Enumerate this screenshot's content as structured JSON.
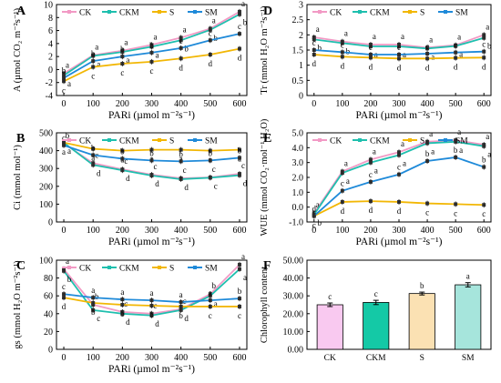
{
  "colors": {
    "CK": "#f29ac5",
    "CKM": "#1fbfae",
    "S": "#f2b705",
    "SM": "#1f8ad9",
    "axis": "#000000"
  },
  "xTickLabels": [
    "0",
    "100",
    "200",
    "300",
    "400",
    "500",
    "600"
  ],
  "chart_data": [
    {
      "id": "A",
      "type": "line",
      "panel_label": "A",
      "xlabel": "PARi (µmol m⁻²s⁻¹)",
      "ylabel": "A (µmol CO₂ m⁻²s⁻¹)",
      "x": [
        0,
        100,
        200,
        300,
        400,
        500,
        600
      ],
      "ylim": [
        -4,
        10
      ],
      "yticks": [
        -4,
        -2,
        0,
        2,
        4,
        6,
        8,
        10
      ],
      "ytick_labels": [
        "-4",
        "-2",
        "0",
        "2",
        "4",
        "6",
        "8",
        "10"
      ],
      "legend": "top-left",
      "grid": false,
      "series": [
        {
          "name": "CK",
          "values": [
            -0.6,
            2.2,
            2.9,
            3.8,
            4.9,
            6.3,
            8.9
          ],
          "letters": [
            "a",
            "a",
            "a",
            "a",
            "a",
            "a",
            "a"
          ]
        },
        {
          "name": "CKM",
          "values": [
            -0.9,
            2.1,
            2.7,
            3.5,
            4.5,
            6.1,
            8.5
          ],
          "letters": [
            "a",
            "a",
            "a",
            "a",
            "b",
            "b",
            "b"
          ]
        },
        {
          "name": "S",
          "values": [
            -1.8,
            0.4,
            0.9,
            1.2,
            1.7,
            2.3,
            3.2
          ],
          "letters": [
            "c",
            "c",
            "c",
            "c",
            "d",
            "d",
            "d"
          ]
        },
        {
          "name": "SM",
          "values": [
            -1.3,
            1.3,
            2.0,
            2.6,
            3.3,
            4.5,
            5.5
          ],
          "letters": [
            "b",
            "b",
            "b",
            "b",
            "c",
            "c",
            "c"
          ]
        }
      ]
    },
    {
      "id": "D",
      "type": "line",
      "panel_label": "D",
      "xlabel": "PARi (µmol m⁻²s⁻¹)",
      "ylabel": "Tr (mmol H₂O m⁻²s⁻¹)",
      "x": [
        0,
        100,
        200,
        300,
        400,
        500,
        600
      ],
      "ylim": [
        0,
        3.0
      ],
      "yticks": [
        0,
        0.5,
        1.0,
        1.5,
        2.0,
        2.5,
        3.0
      ],
      "ytick_labels": [
        "0",
        "0.5",
        "1",
        "1.5",
        "2",
        "2.5",
        "3"
      ],
      "legend": "top-left",
      "grid": false,
      "series": [
        {
          "name": "CK",
          "values": [
            1.92,
            1.78,
            1.68,
            1.68,
            1.58,
            1.66,
            2.0
          ],
          "letters": [
            "a",
            "a",
            "a",
            "a",
            "a",
            "a",
            "a"
          ]
        },
        {
          "name": "CKM",
          "values": [
            1.85,
            1.73,
            1.62,
            1.62,
            1.55,
            1.63,
            1.9
          ],
          "letters": [
            "b",
            "b",
            "a",
            "a",
            "a",
            "a",
            "b"
          ]
        },
        {
          "name": "S",
          "values": [
            1.35,
            1.28,
            1.25,
            1.22,
            1.22,
            1.24,
            1.25
          ],
          "letters": [
            "d",
            "d",
            "d",
            "d",
            "d",
            "d",
            "d"
          ]
        },
        {
          "name": "SM",
          "values": [
            1.5,
            1.43,
            1.35,
            1.35,
            1.38,
            1.42,
            1.45
          ],
          "letters": [
            "c",
            "c",
            "c",
            "c",
            "c",
            "c",
            "c"
          ]
        }
      ]
    },
    {
      "id": "B",
      "type": "line",
      "panel_label": "B",
      "xlabel": "PARi (µmol m⁻²s⁻¹)",
      "ylabel": "Ci (mmol mol⁻¹)",
      "x": [
        0,
        100,
        200,
        300,
        400,
        500,
        600
      ],
      "ylim": [
        0,
        500
      ],
      "yticks": [
        0,
        100,
        200,
        300,
        400,
        500
      ],
      "ytick_labels": [
        "0",
        "100",
        "200",
        "300",
        "400",
        "500"
      ],
      "legend": "top-left",
      "grid": false,
      "series": [
        {
          "name": "CK",
          "values": [
            440,
            330,
            295,
            265,
            245,
            250,
            270
          ],
          "letters": [
            "b",
            "c",
            "c",
            "c",
            "c",
            "c",
            "c"
          ]
        },
        {
          "name": "CKM",
          "values": [
            445,
            320,
            290,
            260,
            240,
            248,
            262
          ],
          "letters": [
            "a",
            "d",
            "d",
            "d",
            "d",
            "c",
            "d"
          ]
        },
        {
          "name": "S",
          "values": [
            445,
            410,
            400,
            405,
            405,
            400,
            405
          ],
          "letters": [
            "a",
            "a",
            "a",
            "a",
            "a",
            "a",
            "a"
          ]
        },
        {
          "name": "SM",
          "values": [
            430,
            375,
            355,
            345,
            340,
            345,
            360
          ],
          "letters": [
            "c",
            "b",
            "b",
            "b",
            "b",
            "b",
            "b"
          ]
        }
      ]
    },
    {
      "id": "E",
      "type": "line",
      "panel_label": "E",
      "xlabel": "PARi (µmol m⁻²s⁻¹)",
      "ylabel": "WUE (mmol CO₂·mol⁻¹ H₂O)",
      "x": [
        0,
        100,
        200,
        300,
        400,
        500,
        600
      ],
      "ylim": [
        -1.0,
        5.0
      ],
      "yticks": [
        -1,
        0,
        1,
        2,
        3,
        4,
        5
      ],
      "ytick_labels": [
        "-1.0",
        "0.0",
        "1.0",
        "2.0",
        "3.0",
        "4.0",
        "5.0"
      ],
      "legend": "top-left",
      "grid": false,
      "series": [
        {
          "name": "CK",
          "values": [
            -0.4,
            2.4,
            3.2,
            3.7,
            4.4,
            4.5,
            4.2
          ],
          "letters": [
            "a",
            "a",
            "a",
            "a",
            "a",
            "a",
            "a"
          ]
        },
        {
          "name": "CKM",
          "values": [
            -0.5,
            2.3,
            3.0,
            3.5,
            4.3,
            4.4,
            4.1
          ],
          "letters": [
            "b",
            "a",
            "a",
            "a",
            "a",
            "a",
            "a"
          ]
        },
        {
          "name": "S",
          "values": [
            -0.6,
            0.35,
            0.4,
            0.35,
            0.25,
            0.2,
            0.15
          ],
          "letters": [
            "c",
            "d",
            "d",
            "d",
            "c",
            "c",
            "c"
          ]
        },
        {
          "name": "SM",
          "values": [
            -0.6,
            1.1,
            1.7,
            2.2,
            3.1,
            3.35,
            2.7
          ],
          "letters": [
            "d",
            "c",
            "c",
            "c",
            "b",
            "b",
            "b"
          ]
        }
      ]
    },
    {
      "id": "C",
      "type": "line",
      "panel_label": "C",
      "xlabel": "PARi (µmol m⁻²s⁻¹)",
      "ylabel": "gs (mmol H₂O m⁻²s⁻¹)",
      "x": [
        0,
        100,
        200,
        300,
        400,
        500,
        600
      ],
      "ylim": [
        0,
        100
      ],
      "yticks": [
        0,
        20,
        40,
        60,
        80,
        100
      ],
      "ytick_labels": [
        "0",
        "20",
        "40",
        "60",
        "80",
        "100"
      ],
      "legend": "top-left",
      "grid": false,
      "series": [
        {
          "name": "CK",
          "values": [
            90,
            50,
            42,
            40,
            45,
            62,
            95
          ],
          "letters": [
            "a",
            "b",
            "c",
            "c",
            "c",
            "b",
            "a"
          ]
        },
        {
          "name": "CKM",
          "values": [
            88,
            44,
            40,
            38,
            44,
            60,
            90
          ],
          "letters": [
            "b",
            "c",
            "d",
            "d",
            "d",
            "a",
            "a"
          ]
        },
        {
          "name": "S",
          "values": [
            58,
            52,
            50,
            49,
            48,
            48,
            48
          ],
          "letters": [
            "d",
            "b",
            "b",
            "b",
            "b",
            "c",
            "c"
          ]
        },
        {
          "name": "SM",
          "values": [
            62,
            58,
            56,
            55,
            53,
            55,
            57
          ],
          "letters": [
            "c",
            "a",
            "a",
            "a",
            "a",
            "a",
            "b"
          ]
        }
      ]
    },
    {
      "id": "F",
      "type": "bar",
      "panel_label": "F",
      "xlabel": "",
      "ylabel": "Chlorophyll content",
      "categories": [
        "CK",
        "CKM",
        "S",
        "SM"
      ],
      "values": [
        25.0,
        26.3,
        31.3,
        36.2
      ],
      "errors": [
        1.0,
        1.2,
        0.8,
        1.2
      ],
      "letters": [
        "c",
        "c",
        "b",
        "a"
      ],
      "bar_colors": [
        "#f9c9f0",
        "#14c9a6",
        "#fbe1b3",
        "#a6e5dc"
      ],
      "ylim": [
        0,
        50
      ],
      "yticks": [
        0,
        10,
        20,
        30,
        40,
        50
      ],
      "ytick_labels": [
        "0.00",
        "10.00",
        "20.00",
        "30.00",
        "40.00",
        "50.00"
      ],
      "grid": false
    }
  ]
}
